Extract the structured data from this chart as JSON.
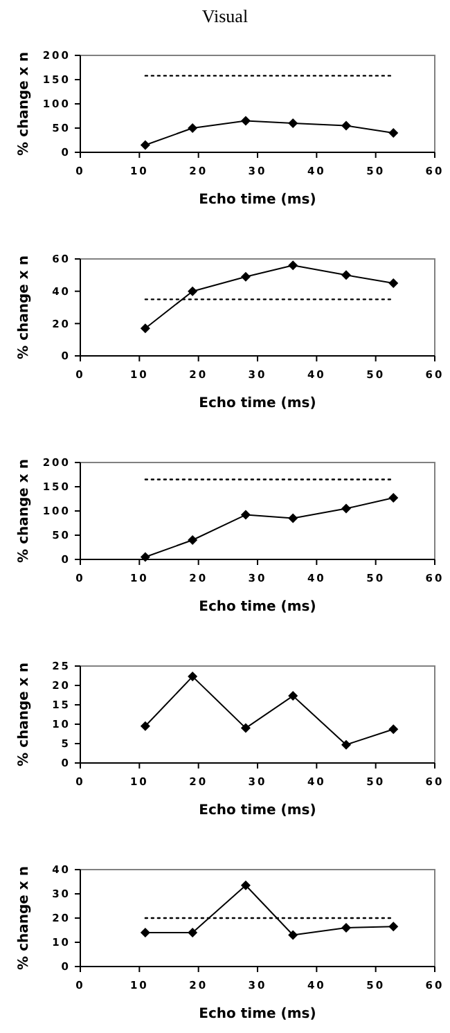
{
  "chart_data": [
    {
      "type": "line",
      "title": "Visual",
      "xlabel": "Echo time (ms)",
      "ylabel": "% change x n",
      "xlim": [
        0,
        60
      ],
      "xticks": [
        0,
        10,
        20,
        30,
        40,
        50,
        60
      ],
      "ylim": [
        0,
        200
      ],
      "yticks": [
        0,
        50,
        100,
        150,
        200
      ],
      "grid": false,
      "series": [
        {
          "color": "#000000",
          "marker": "diamond",
          "line_style": "solid",
          "x": [
            11,
            19,
            28,
            36,
            45,
            53
          ],
          "values": [
            15,
            50,
            65,
            60,
            55,
            40
          ]
        },
        {
          "color": "#000000",
          "marker": "none",
          "line_style": "dotted",
          "x": [
            11,
            53
          ],
          "values": [
            158,
            158
          ]
        }
      ]
    },
    {
      "type": "line",
      "xlabel": "Echo time (ms)",
      "ylabel": "% change x n",
      "xlim": [
        0,
        60
      ],
      "xticks": [
        0,
        10,
        20,
        30,
        40,
        50,
        60
      ],
      "ylim": [
        0,
        60
      ],
      "yticks": [
        0,
        20,
        40,
        60
      ],
      "grid": false,
      "series": [
        {
          "color": "#000000",
          "marker": "diamond",
          "line_style": "solid",
          "x": [
            11,
            19,
            28,
            36,
            45,
            53
          ],
          "values": [
            17,
            40,
            49,
            56,
            50,
            45
          ]
        },
        {
          "color": "#000000",
          "marker": "none",
          "line_style": "dotted",
          "x": [
            11,
            53
          ],
          "values": [
            35,
            35
          ]
        }
      ]
    },
    {
      "type": "line",
      "xlabel": "Echo time (ms)",
      "ylabel": "% change x n",
      "xlim": [
        0,
        60
      ],
      "xticks": [
        0,
        10,
        20,
        30,
        40,
        50,
        60
      ],
      "ylim": [
        0,
        200
      ],
      "yticks": [
        0,
        50,
        100,
        150,
        200
      ],
      "grid": false,
      "series": [
        {
          "color": "#000000",
          "marker": "diamond",
          "line_style": "solid",
          "x": [
            11,
            19,
            28,
            36,
            45,
            53
          ],
          "values": [
            5,
            40,
            92,
            85,
            105,
            127
          ]
        },
        {
          "color": "#000000",
          "marker": "none",
          "line_style": "dotted",
          "x": [
            11,
            53
          ],
          "values": [
            165,
            165
          ]
        }
      ]
    },
    {
      "type": "line",
      "xlabel": "Echo time (ms)",
      "ylabel": "% change x n",
      "xlim": [
        0,
        60
      ],
      "xticks": [
        0,
        10,
        20,
        30,
        40,
        50,
        60
      ],
      "ylim": [
        0,
        25
      ],
      "yticks": [
        0,
        5,
        10,
        15,
        20,
        25
      ],
      "grid": false,
      "series": [
        {
          "color": "#000000",
          "marker": "diamond",
          "line_style": "solid",
          "x": [
            11,
            19,
            28,
            36,
            45,
            53
          ],
          "values": [
            9.5,
            22.3,
            9,
            17.3,
            4.7,
            8.7
          ]
        }
      ]
    },
    {
      "type": "line",
      "xlabel": "Echo time (ms)",
      "ylabel": "% change x n",
      "xlim": [
        0,
        60
      ],
      "xticks": [
        0,
        10,
        20,
        30,
        40,
        50,
        60
      ],
      "ylim": [
        0,
        40
      ],
      "yticks": [
        0,
        10,
        20,
        30,
        40
      ],
      "grid": false,
      "series": [
        {
          "color": "#000000",
          "marker": "diamond",
          "line_style": "solid",
          "x": [
            11,
            19,
            28,
            36,
            45,
            53
          ],
          "values": [
            14,
            14,
            33.5,
            13,
            16,
            16.5
          ]
        },
        {
          "color": "#000000",
          "marker": "none",
          "line_style": "dotted",
          "x": [
            11,
            53
          ],
          "values": [
            20,
            20
          ]
        }
      ]
    }
  ]
}
